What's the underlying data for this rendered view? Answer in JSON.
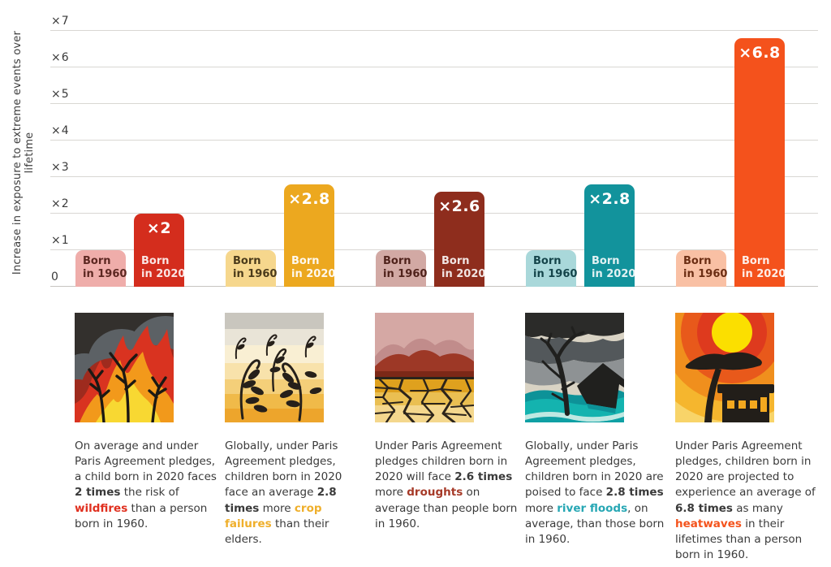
{
  "axis": {
    "title": "Increase in exposure to extreme events over lifetime",
    "ticks": [
      {
        "v": 0,
        "label": "0"
      },
      {
        "v": 1,
        "label": "×1"
      },
      {
        "v": 2,
        "label": "×2"
      },
      {
        "v": 3,
        "label": "×3"
      },
      {
        "v": 4,
        "label": "×4"
      },
      {
        "v": 5,
        "label": "×5"
      },
      {
        "v": 6,
        "label": "×6"
      },
      {
        "v": 7,
        "label": "×7"
      }
    ]
  },
  "chart_data": {
    "type": "bar",
    "title": "",
    "ylabel": "Increase in exposure to extreme events over lifetime",
    "ylim": [
      0,
      7
    ],
    "ytick_labels": [
      "0",
      "×1",
      "×2",
      "×3",
      "×4",
      "×5",
      "×6",
      "×7"
    ],
    "grid": true,
    "legend": "labels printed inside bars",
    "categories": [
      "wildfires",
      "crop failures",
      "droughts",
      "river floods",
      "heatwaves"
    ],
    "series": [
      {
        "name": "Born in 1960",
        "values": [
          1,
          1,
          1,
          1,
          1
        ]
      },
      {
        "name": "Born in 2020",
        "values": [
          2,
          2.8,
          2.6,
          2.8,
          6.8
        ]
      }
    ],
    "bar_value_labels": [
      "×2",
      "×2.8",
      "×2.6",
      "×2.8",
      "×6.8"
    ]
  },
  "groups": [
    {
      "category": "wildfires",
      "illustration": "wildfire-illustration",
      "bar_1960": {
        "label_lines": [
          "Born",
          "in 1960"
        ],
        "value": 1,
        "color": "#efadaa",
        "text_color": "#5c2721"
      },
      "bar_2020": {
        "label_lines": [
          "Born",
          "in 2020"
        ],
        "value": 2,
        "value_label": "×2",
        "color": "#d42d1d",
        "text_color": "rgba(255,255,255,0.88)"
      },
      "description": [
        {
          "t": "On average and under Paris Agreement pledges, a child born in 2020 faces "
        },
        {
          "t": "2 times",
          "b": true
        },
        {
          "t": " the risk of "
        },
        {
          "t": "wildfires",
          "b": true,
          "c": "#e0301f"
        },
        {
          "t": " than a person born in 1960."
        }
      ]
    },
    {
      "category": "crop failures",
      "illustration": "crop-failure-illustration",
      "bar_1960": {
        "label_lines": [
          "Born",
          "in 1960"
        ],
        "value": 1,
        "color": "#f6d78d",
        "text_color": "#4a3a1a"
      },
      "bar_2020": {
        "label_lines": [
          "Born",
          "in 2020"
        ],
        "value": 2.8,
        "value_label": "×2.8",
        "color": "#eca81f",
        "text_color": "rgba(255,255,255,0.92)"
      },
      "description": [
        {
          "t": "Globally, under Paris Agreement pledges, children born in 2020 face an average "
        },
        {
          "t": "2.8 times",
          "b": true
        },
        {
          "t": " more "
        },
        {
          "t": "crop failures",
          "b": true,
          "c": "#efaf2b"
        },
        {
          "t": " than their elders."
        }
      ]
    },
    {
      "category": "droughts",
      "illustration": "drought-illustration",
      "bar_1960": {
        "label_lines": [
          "Born",
          "in 1960"
        ],
        "value": 1,
        "color": "#d2a9a4",
        "text_color": "#4f221b"
      },
      "bar_2020": {
        "label_lines": [
          "Born",
          "in 2020"
        ],
        "value": 2.6,
        "value_label": "×2.6",
        "color": "#8e2d1d",
        "text_color": "rgba(255,255,255,0.88)"
      },
      "description": [
        {
          "t": "Under Paris Agreement pledges children born in 2020 will face "
        },
        {
          "t": "2.6 times",
          "b": true
        },
        {
          "t": " more "
        },
        {
          "t": "droughts",
          "b": true,
          "c": "#a63a28"
        },
        {
          "t": " on average than people born in 1960."
        }
      ]
    },
    {
      "category": "river floods",
      "illustration": "river-flood-illustration",
      "bar_1960": {
        "label_lines": [
          "Born",
          "in 1960"
        ],
        "value": 1,
        "color": "#a9d8da",
        "text_color": "#14444a"
      },
      "bar_2020": {
        "label_lines": [
          "Born",
          "in 2020"
        ],
        "value": 2.8,
        "value_label": "×2.8",
        "color": "#12939c",
        "text_color": "rgba(255,255,255,0.88)"
      },
      "description": [
        {
          "t": "Globally, under Paris Agreement pledges, children born in 2020 are poised to face "
        },
        {
          "t": "2.8 times",
          "b": true
        },
        {
          "t": " more "
        },
        {
          "t": "river floods",
          "b": true,
          "c": "#27a7b4"
        },
        {
          "t": ", on average, than those born in 1960."
        }
      ]
    },
    {
      "category": "heatwaves",
      "illustration": "heatwave-illustration",
      "bar_1960": {
        "label_lines": [
          "Born",
          "in 1960"
        ],
        "value": 1,
        "color": "#f9c0a4",
        "text_color": "#6b2d13"
      },
      "bar_2020": {
        "label_lines": [
          "Born",
          "in 2020"
        ],
        "value": 6.8,
        "value_label": "×6.8",
        "color": "#f4521c",
        "text_color": "rgba(255,255,255,0.9)"
      },
      "description": [
        {
          "t": "Under Paris Agreement pledges, children born in 2020 are projected to experience an average of "
        },
        {
          "t": "6.8 times",
          "b": true
        },
        {
          "t": " as many "
        },
        {
          "t": "heatwaves",
          "b": true,
          "c": "#f4531c"
        },
        {
          "t": " in their lifetimes than a person born in 1960."
        }
      ]
    }
  ]
}
